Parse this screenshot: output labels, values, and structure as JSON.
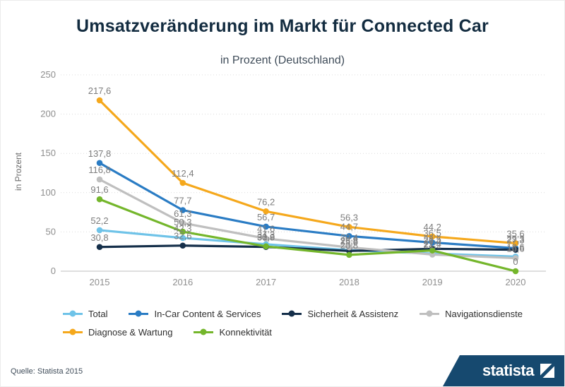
{
  "page": {
    "title": "Umsatzveränderung im Markt für Connected Car",
    "subtitle": "in Prozent (Deutschland)"
  },
  "chart_data": {
    "type": "line",
    "title": "Umsatzveränderung im Markt für Connected Car",
    "subtitle": "in Prozent (Deutschland)",
    "categories": [
      "2015",
      "2016",
      "2017",
      "2018",
      "2019",
      "2020"
    ],
    "xlabel": "",
    "ylabel": "in Prozent",
    "ylim": [
      0,
      250
    ],
    "yticks": [
      0,
      50,
      100,
      150,
      200,
      250
    ],
    "grid": "horizontal-dotted",
    "legend_position": "bottom",
    "marker": "circle",
    "data_labels": true,
    "decimal_separator": ",",
    "series": [
      {
        "name": "Total",
        "color": "#6fc3e8",
        "legend_row": 1,
        "values": [
          52.2,
          42.3,
          34.3,
          26.8,
          22.4,
          18.6
        ]
      },
      {
        "name": "In-Car Content & Services",
        "color": "#2a7cc4",
        "legend_row": 1,
        "values": [
          137.8,
          77.7,
          56.7,
          44.7,
          36.5,
          29.3
        ]
      },
      {
        "name": "Sicherheit & Assistenz",
        "color": "#152f4a",
        "legend_row": 1,
        "values": [
          30.8,
          32.6,
          30.9,
          25.8,
          28.5,
          27.3
        ]
      },
      {
        "name": "Navigationsdienste",
        "color": "#bfbfbf",
        "legend_row": 1,
        "values": [
          116.8,
          61.3,
          41.6,
          30.4,
          21.2,
          16.6
        ]
      },
      {
        "name": "Diagnose & Wartung",
        "color": "#f5a81c",
        "legend_row": 2,
        "values": [
          217.6,
          112.4,
          76.2,
          56.3,
          44.2,
          35.6
        ]
      },
      {
        "name": "Konnektivität",
        "color": "#74b62b",
        "legend_row": 2,
        "values": [
          91.6,
          50.3,
          31.6,
          20.8,
          26.4,
          0
        ]
      }
    ],
    "colors": {
      "grid": "#dcdcdc",
      "baseline": "#bfbfbf",
      "tick_text": "#8f8f8f",
      "data_label_text": "#7d7d7d"
    }
  },
  "footer": {
    "source": "Quelle: Statista 2015",
    "brand": "statista"
  }
}
